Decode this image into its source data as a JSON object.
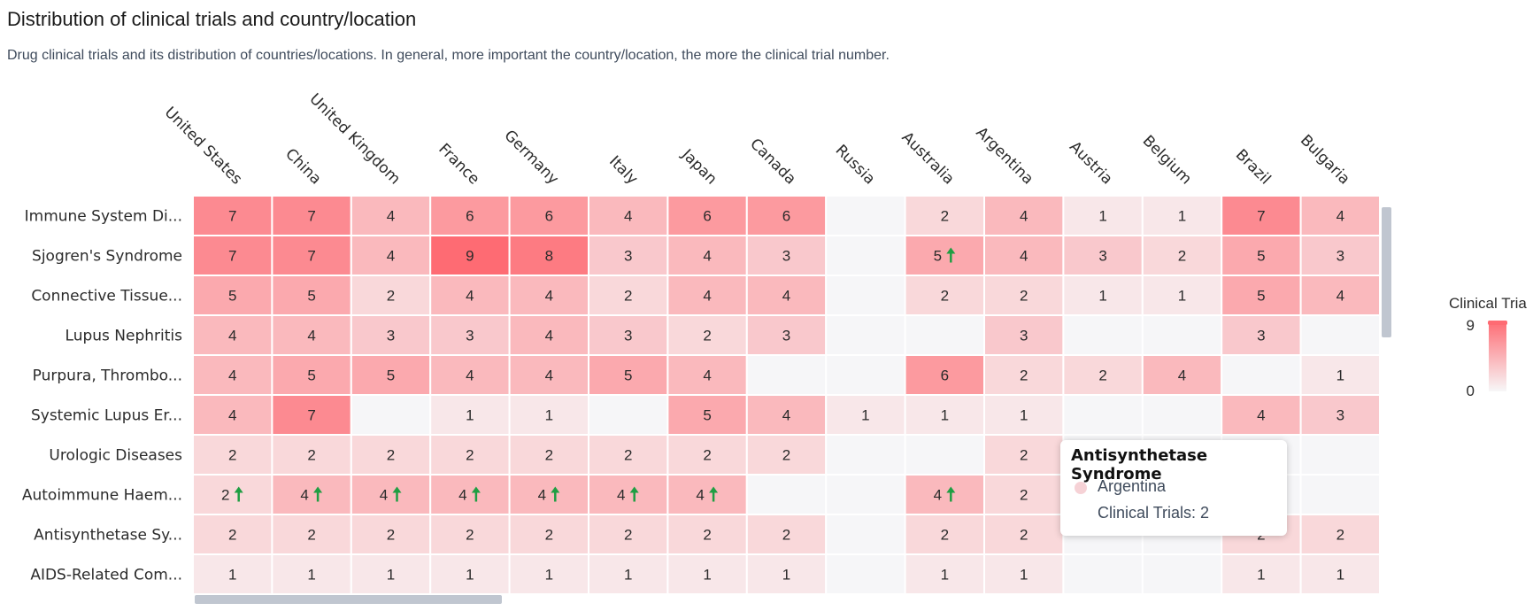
{
  "header": {
    "title": "Distribution of clinical trials and country/location",
    "subtitle": "Drug clinical trials and its distribution of countries/locations. In general, more important the country/location, the more the clinical trial number."
  },
  "colors": {
    "low": "#f7f7f8",
    "high": "#fe6b73",
    "arrow": "#1f9e43",
    "scroll": "#c0c6d0"
  },
  "chart_data": {
    "type": "heatmap",
    "x_categories": [
      "United States",
      "China",
      "United Kingdom",
      "France",
      "Germany",
      "Italy",
      "Japan",
      "Canada",
      "Russia",
      "Australia",
      "Argentina",
      "Austria",
      "Belgium",
      "Brazil",
      "Bulgaria"
    ],
    "y_categories": [
      "Immune System Di...",
      "Sjogren's Syndrome",
      "Connective Tissue...",
      "Lupus Nephritis",
      "Purpura, Thrombo...",
      "Systemic Lupus Er...",
      "Urologic Diseases",
      "Autoimmune Haem...",
      "Antisynthetase Sy...",
      "AIDS-Related Com..."
    ],
    "values": [
      [
        7,
        7,
        4,
        6,
        6,
        4,
        6,
        6,
        null,
        2,
        4,
        1,
        1,
        7,
        4
      ],
      [
        7,
        7,
        4,
        9,
        8,
        3,
        4,
        3,
        null,
        5,
        4,
        3,
        2,
        5,
        3
      ],
      [
        5,
        5,
        2,
        4,
        4,
        2,
        4,
        4,
        null,
        2,
        2,
        1,
        1,
        5,
        4
      ],
      [
        4,
        4,
        3,
        3,
        4,
        3,
        2,
        3,
        null,
        null,
        3,
        null,
        null,
        3,
        null
      ],
      [
        4,
        5,
        5,
        4,
        4,
        5,
        4,
        null,
        null,
        6,
        2,
        2,
        4,
        null,
        1
      ],
      [
        4,
        7,
        null,
        1,
        1,
        null,
        5,
        4,
        1,
        1,
        1,
        null,
        null,
        4,
        3
      ],
      [
        2,
        2,
        2,
        2,
        2,
        2,
        2,
        2,
        null,
        null,
        2,
        null,
        null,
        null,
        null
      ],
      [
        2,
        4,
        4,
        4,
        4,
        4,
        4,
        null,
        null,
        4,
        2,
        null,
        null,
        null,
        null
      ],
      [
        2,
        2,
        2,
        2,
        2,
        2,
        2,
        2,
        null,
        2,
        2,
        null,
        null,
        2,
        2
      ],
      [
        1,
        1,
        1,
        1,
        1,
        1,
        1,
        1,
        null,
        1,
        1,
        null,
        null,
        1,
        1
      ]
    ],
    "trend_up": [
      [
        1,
        9
      ],
      [
        7,
        0
      ],
      [
        7,
        1
      ],
      [
        7,
        2
      ],
      [
        7,
        3
      ],
      [
        7,
        4
      ],
      [
        7,
        5
      ],
      [
        7,
        6
      ],
      [
        7,
        9
      ]
    ],
    "visual_map": {
      "label": "Clinical Tria",
      "min": 0,
      "max": 9
    },
    "tooltip": {
      "title": "Antisynthetase Syndrome",
      "series": "Argentina",
      "label": "Clinical Trials:",
      "value": 2
    }
  }
}
